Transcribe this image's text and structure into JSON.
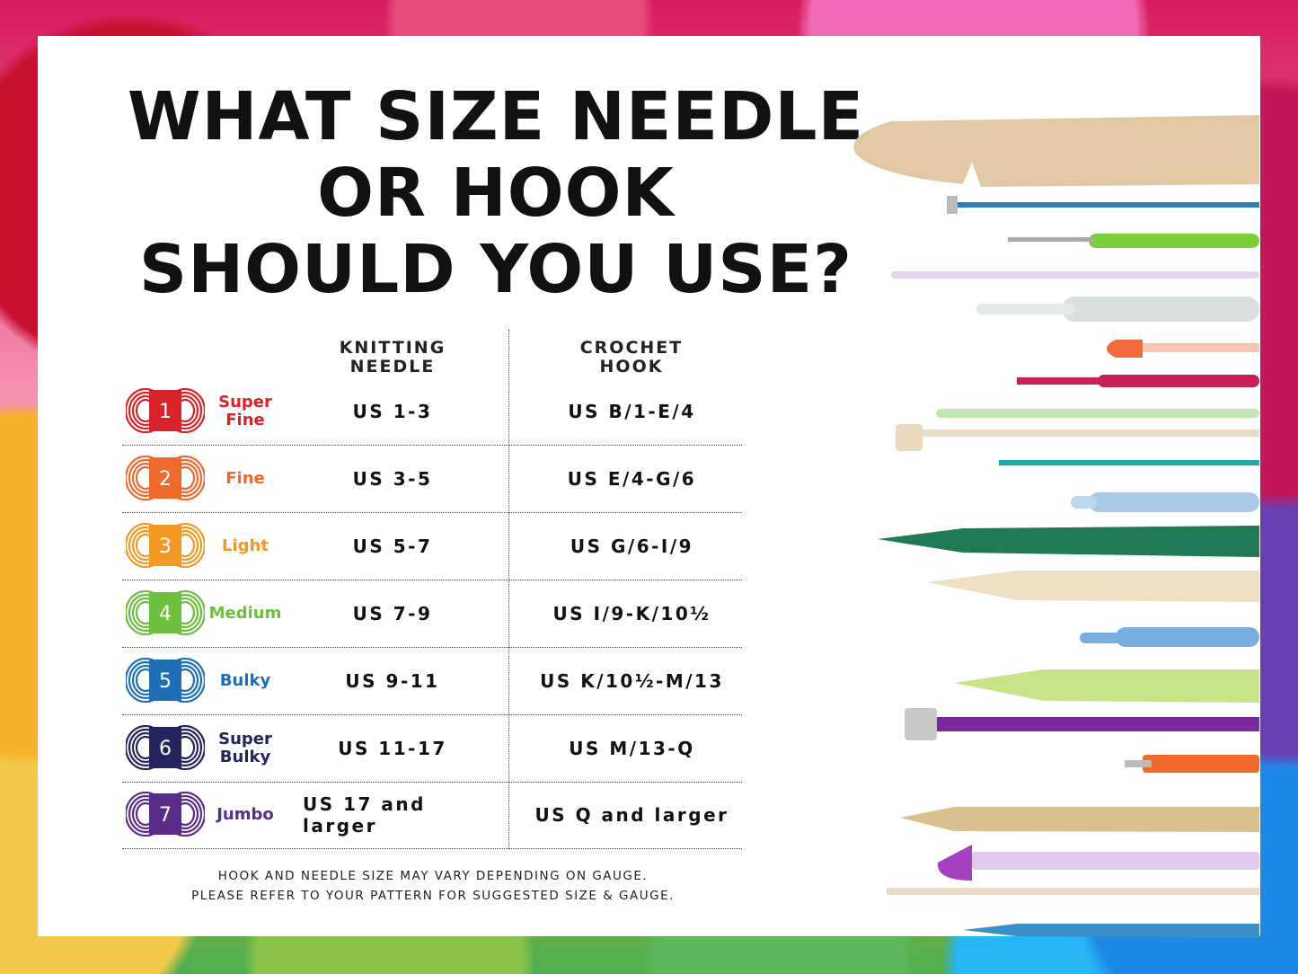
{
  "title": [
    "WHAT SIZE NEEDLE",
    "OR HOOK",
    "SHOULD YOU USE?"
  ],
  "columns": {
    "knitting": [
      "KNITTING",
      "NEEDLE"
    ],
    "crochet": [
      "CROCHET",
      "HOOK"
    ]
  },
  "rows": [
    {
      "number": "1",
      "weight": [
        "Super",
        "Fine"
      ],
      "knitting": "US 1-3",
      "crochet": "US B/1-E/4",
      "color": "#d7232a"
    },
    {
      "number": "2",
      "weight": [
        "Fine"
      ],
      "knitting": "US 3-5",
      "crochet": "US E/4-G/6",
      "color": "#ee6a2c"
    },
    {
      "number": "3",
      "weight": [
        "Light"
      ],
      "knitting": "US 5-7",
      "crochet": "US G/6-I/9",
      "color": "#f39a26"
    },
    {
      "number": "4",
      "weight": [
        "Medium"
      ],
      "knitting": "US 7-9",
      "crochet": "US I/9-K/10½",
      "color": "#6cbf3f"
    },
    {
      "number": "5",
      "weight": [
        "Bulky"
      ],
      "knitting": "US 9-11",
      "crochet": "US K/10½-M/13",
      "color": "#1f6fb6"
    },
    {
      "number": "6",
      "weight": [
        "Super",
        "Bulky"
      ],
      "knitting": "US 11-17",
      "crochet": "US M/13-Q",
      "color": "#25245e"
    },
    {
      "number": "7",
      "weight": [
        "Jumbo"
      ],
      "knitting": "US 17 and larger",
      "crochet": "US Q and larger",
      "color": "#5b2b8a"
    }
  ],
  "footer": [
    "HOOK AND NEEDLE SIZE MAY VARY DEPENDING ON GAUGE.",
    "PLEASE REFER TO YOUR PATTERN FOR SUGGESTED SIZE & GAUGE."
  ],
  "illustration": "knitting-needles-and-crochet-hooks"
}
